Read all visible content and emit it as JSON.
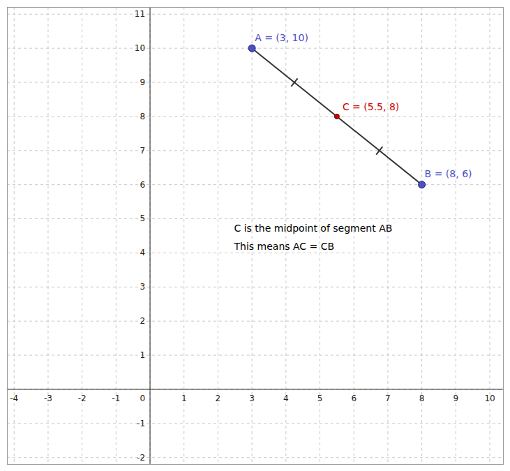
{
  "chart_data": {
    "type": "segment",
    "xlim": [
      -4.2,
      10.4
    ],
    "ylim": [
      -2.2,
      11.2
    ],
    "xticks": [
      -4,
      -3,
      -2,
      -1,
      0,
      1,
      2,
      3,
      4,
      5,
      6,
      7,
      8,
      9,
      10
    ],
    "yticks": [
      -2,
      -1,
      0,
      1,
      2,
      3,
      4,
      5,
      6,
      7,
      8,
      9,
      10,
      11
    ],
    "grid": true,
    "points": [
      {
        "name": "A",
        "label": "A = (3, 10)",
        "x": 3,
        "y": 10,
        "color": "#4d4dcc"
      },
      {
        "name": "B",
        "label": "B = (8, 6)",
        "x": 8,
        "y": 6,
        "color": "#4d4dcc"
      },
      {
        "name": "C",
        "label": "C = (5.5, 8)",
        "x": 5.5,
        "y": 8,
        "color": "#cc0000"
      }
    ],
    "segment": {
      "from": "A",
      "to": "B",
      "midpoint": "C"
    },
    "annotations": [
      "C is the midpoint of segment AB",
      "This means AC = CB"
    ]
  }
}
